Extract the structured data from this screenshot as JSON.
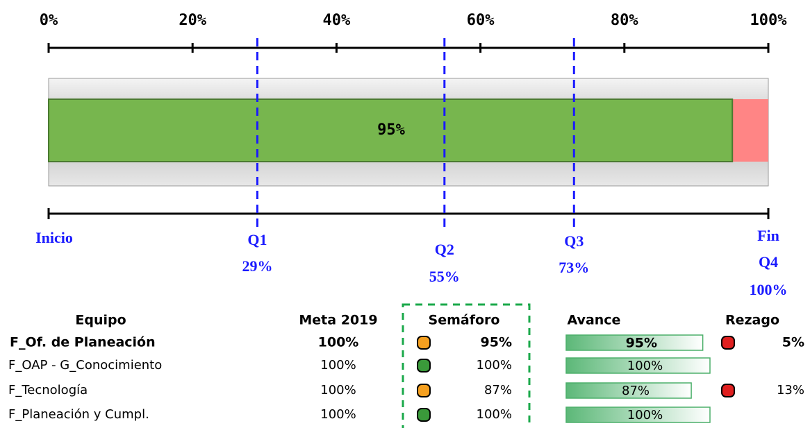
{
  "scale": {
    "lim": [
      0,
      100
    ],
    "ticks": [
      {
        "value": 0,
        "label": "0%"
      },
      {
        "value": 20,
        "label": "20%"
      },
      {
        "value": 40,
        "label": "40%"
      },
      {
        "value": 60,
        "label": "60%"
      },
      {
        "value": 80,
        "label": "80%"
      },
      {
        "value": 100,
        "label": "100%"
      }
    ]
  },
  "progress": {
    "value": 95,
    "label": "95%",
    "color": "#77b64e",
    "rest_color": "#ff8585"
  },
  "milestones": [
    {
      "name": "Inicio"
    },
    {
      "name": "Q1",
      "value": 29,
      "label": "29%"
    },
    {
      "name": "Q2",
      "value": 55,
      "label": "55%"
    },
    {
      "name": "Q3",
      "value": 73,
      "label": "73%"
    },
    {
      "name": "Fin",
      "quarter": "Q4",
      "value": 100,
      "label": "100%"
    }
  ],
  "table": {
    "columns": [
      "Equipo",
      "Meta 2019",
      "Semáforo",
      "Avance",
      "Rezago"
    ],
    "rows": [
      {
        "equipo": "F_Of. de Planeación",
        "bold": true,
        "meta": {
          "value": 100,
          "label": "100%"
        },
        "semaforo": {
          "value": 95,
          "label": "95%",
          "color": "#f5a020"
        },
        "avance": {
          "value": 95,
          "label": "95%"
        },
        "rezago": {
          "value": 5,
          "label": "5%",
          "color": "#e02020"
        }
      },
      {
        "equipo": "F_OAP - G_Conocimiento",
        "meta": {
          "value": 100,
          "label": "100%"
        },
        "semaforo": {
          "value": 100,
          "label": "100%",
          "color": "#3a9a3a"
        },
        "avance": {
          "value": 100,
          "label": "100%"
        }
      },
      {
        "equipo": "F_Tecnología",
        "meta": {
          "value": 100,
          "label": "100%"
        },
        "semaforo": {
          "value": 87,
          "label": "87%",
          "color": "#f5a020"
        },
        "avance": {
          "value": 87,
          "label": "87%"
        },
        "rezago": {
          "value": 13,
          "label": "13%",
          "color": "#e02020"
        }
      },
      {
        "equipo": "F_Planeación y Cumpl.",
        "meta": {
          "value": 100,
          "label": "100%"
        },
        "semaforo": {
          "value": 100,
          "label": "100%",
          "color": "#3a9a3a"
        },
        "avance": {
          "value": 100,
          "label": "100%"
        }
      }
    ]
  }
}
